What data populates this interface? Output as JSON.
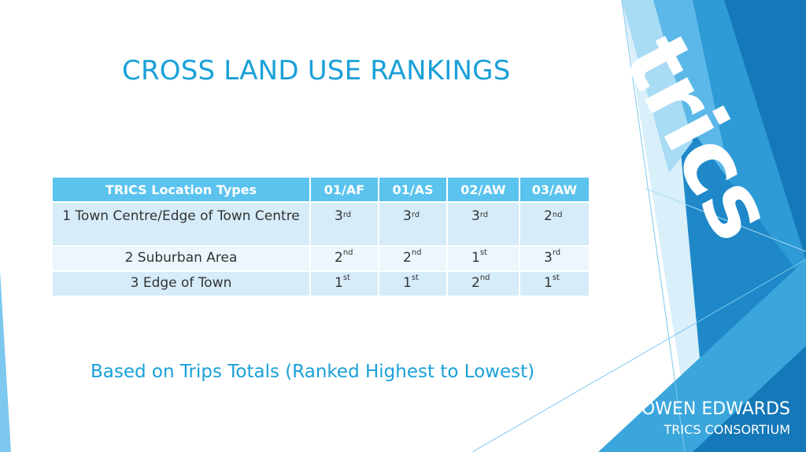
{
  "slide": {
    "title": "CROSS LAND USE RANKINGS",
    "note": "Based on Trips Totals (Ranked Highest to Lowest)",
    "author_name": "OWEN EDWARDS",
    "author_org": "TRICS CONSORTIUM",
    "logo_text": "trics"
  },
  "table": {
    "headers": [
      "TRICS Location Types",
      "01/AF",
      "01/AS",
      "02/AW",
      "03/AW"
    ],
    "rows": [
      {
        "location": "1 Town Centre/Edge of Town Centre",
        "cells": [
          {
            "num": "3",
            "suffix": "rd"
          },
          {
            "num": "3",
            "suffix": "rd"
          },
          {
            "num": "3",
            "suffix": "rd"
          },
          {
            "num": "2",
            "suffix": "nd"
          }
        ]
      },
      {
        "location": "2 Suburban Area",
        "cells": [
          {
            "num": "2",
            "suffix": "nd"
          },
          {
            "num": "2",
            "suffix": "nd"
          },
          {
            "num": "1",
            "suffix": "st"
          },
          {
            "num": "3",
            "suffix": "rd"
          }
        ]
      },
      {
        "location": "3 Edge of Town",
        "cells": [
          {
            "num": "1",
            "suffix": "st"
          },
          {
            "num": "1",
            "suffix": "st"
          },
          {
            "num": "2",
            "suffix": "nd"
          },
          {
            "num": "1",
            "suffix": "st"
          }
        ]
      }
    ]
  },
  "colors": {
    "accent": "#1aa0d8",
    "header_bg": "#5bc3ee",
    "row_dark": "#d6ecf9",
    "row_light": "#ecf6fc",
    "deco_dark": "#1578b8",
    "deco_mid": "#2e9ad6",
    "deco_light": "#7cc8ee"
  }
}
